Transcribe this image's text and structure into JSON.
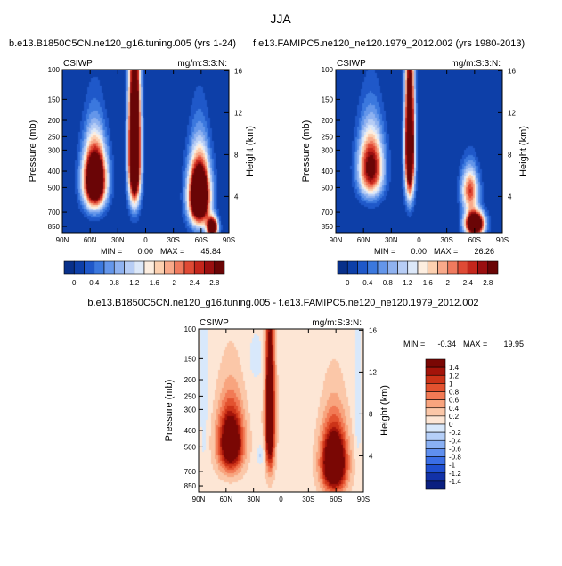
{
  "page": {
    "main_title": "JJA",
    "title_left": "b.e13.B1850C5CN.ne120_g16.tuning.005 (yrs 1-24)",
    "title_right": "f.e13.FAMIPC5.ne120_ne120.1979_2012.002 (yrs 1980-2013)",
    "title_diff": "b.e13.B1850C5CN.ne120_g16.tuning.005 - f.e13.FAMIPC5.ne120_ne120.1979_2012.002"
  },
  "colors": {
    "abs_fill": [
      "#08308a",
      "#0d3fa8",
      "#1f58c9",
      "#3b78de",
      "#6496ea",
      "#8fb2f0",
      "#b7cdf5",
      "#dce8f9",
      "#fdeee0",
      "#fcd0b0",
      "#f8a98a",
      "#ef7a5e",
      "#df4a35",
      "#c4261c",
      "#9a0f10",
      "#6a0506"
    ],
    "diff_fill": [
      "#0a1f80",
      "#1232a8",
      "#1f4fd0",
      "#3a6ee6",
      "#5f8fef",
      "#89b0f4",
      "#b5cff8",
      "#d8e8fb",
      "#fde6d5",
      "#fbc7a8",
      "#f8a47e",
      "#f27a55",
      "#e3522f",
      "#cc3318",
      "#a4140a",
      "#7a0704"
    ]
  },
  "chart_data": [
    {
      "type": "heatmap",
      "panel": "left",
      "variable": "CSIWP",
      "units": "mg/m:S:3:N:",
      "x_tick_labels": [
        "90N",
        "60N",
        "30N",
        "0",
        "30S",
        "60S",
        "90S"
      ],
      "x_values": [
        90,
        60,
        30,
        0,
        -30,
        -60,
        -90
      ],
      "y_label": "Pressure  (mb)",
      "y_ticks": [
        100,
        150,
        200,
        250,
        300,
        400,
        500,
        700,
        850
      ],
      "y_tick_labels": [
        "100",
        "150",
        "200",
        "250",
        "300",
        "400",
        "500",
        "700",
        "850"
      ],
      "y2_label": "Height  (km)",
      "y2_ticks": [
        16,
        12,
        8,
        4
      ],
      "y2_tick_labels": [
        "16",
        "12",
        "8",
        "4"
      ],
      "ylim": [
        100,
        925
      ],
      "min_label": "MIN =",
      "min_value": "0.00",
      "max_label": "MAX =",
      "max_value": "45.84",
      "levels": [
        0,
        0.2,
        0.4,
        0.6,
        0.8,
        1.0,
        1.2,
        1.4,
        1.6,
        1.8,
        2.0,
        2.2,
        2.4,
        2.6,
        2.8
      ],
      "colorbar_labels": [
        "0",
        "0.4",
        "0.8",
        "1.2",
        "1.6",
        "2",
        "2.4",
        "2.8"
      ],
      "features": [
        {
          "lat": 55,
          "p": 450,
          "sx": 12,
          "sy": 190,
          "amp": 5.0
        },
        {
          "lat": 12,
          "p": 300,
          "sx": 6,
          "sy": 280,
          "amp": 6.0
        },
        {
          "lat": -58,
          "p": 560,
          "sx": 11,
          "sy": 240,
          "amp": 5.5
        },
        {
          "lat": -72,
          "p": 860,
          "sx": 6,
          "sy": 110,
          "amp": 4.0
        }
      ]
    },
    {
      "type": "heatmap",
      "panel": "right",
      "variable": "CSIWP",
      "units": "mg/m:S:3:N:",
      "x_tick_labels": [
        "90N",
        "60N",
        "30N",
        "0",
        "30S",
        "60S",
        "90S"
      ],
      "x_values": [
        90,
        60,
        30,
        0,
        -30,
        -60,
        -90
      ],
      "y_label": "Pressure  (mb)",
      "y_ticks": [
        100,
        150,
        200,
        250,
        300,
        400,
        500,
        700,
        850
      ],
      "y_tick_labels": [
        "100",
        "150",
        "200",
        "250",
        "300",
        "400",
        "500",
        "700",
        "850"
      ],
      "y2_label": "Height  (km)",
      "y2_ticks": [
        16,
        12,
        8,
        4
      ],
      "y2_tick_labels": [
        "16",
        "12",
        "8",
        "4"
      ],
      "ylim": [
        100,
        925
      ],
      "min_label": "MIN =",
      "min_value": "0.00",
      "max_label": "MAX =",
      "max_value": "26.26",
      "levels": [
        0,
        0.2,
        0.4,
        0.6,
        0.8,
        1.0,
        1.2,
        1.4,
        1.6,
        1.8,
        2.0,
        2.2,
        2.4,
        2.6,
        2.8
      ],
      "colorbar_labels": [
        "0",
        "0.4",
        "0.8",
        "1.2",
        "1.6",
        "2",
        "2.4",
        "2.8"
      ],
      "features": [
        {
          "lat": 52,
          "p": 380,
          "sx": 13,
          "sy": 170,
          "amp": 3.2
        },
        {
          "lat": 10,
          "p": 280,
          "sx": 5,
          "sy": 260,
          "amp": 5.0
        },
        {
          "lat": -55,
          "p": 520,
          "sx": 9,
          "sy": 150,
          "amp": 2.4
        },
        {
          "lat": -60,
          "p": 820,
          "sx": 10,
          "sy": 130,
          "amp": 5.0
        }
      ]
    },
    {
      "type": "heatmap",
      "panel": "diff",
      "variable": "CSIWP",
      "units": "mg/m:S:3:N:",
      "x_tick_labels": [
        "90N",
        "60N",
        "30N",
        "0",
        "30S",
        "60S",
        "90S"
      ],
      "x_values": [
        90,
        60,
        30,
        0,
        -30,
        -60,
        -90
      ],
      "y_label": "Pressure  (mb)",
      "y_ticks": [
        100,
        150,
        200,
        250,
        300,
        400,
        500,
        700,
        850
      ],
      "y_tick_labels": [
        "100",
        "150",
        "200",
        "250",
        "300",
        "400",
        "500",
        "700",
        "850"
      ],
      "y2_label": "Height  (km)",
      "y2_ticks": [
        16,
        12,
        8,
        4
      ],
      "y2_tick_labels": [
        "16",
        "12",
        "8",
        "4"
      ],
      "ylim": [
        100,
        925
      ],
      "min_label": "MIN =",
      "min_value": "-0.34",
      "max_label": "MAX =",
      "max_value": "19.95",
      "levels": [
        -1.4,
        -1.2,
        -1.0,
        -0.8,
        -0.6,
        -0.4,
        -0.2,
        0,
        0.2,
        0.4,
        0.6,
        0.8,
        1.0,
        1.2,
        1.4
      ],
      "colorbar_labels": [
        "-1.4",
        "-1.2",
        "-1",
        "-0.8",
        "-0.6",
        "-0.4",
        "-0.2",
        "0",
        "0.2",
        "0.4",
        "0.6",
        "0.8",
        "1",
        "1.2",
        "1.4"
      ],
      "features": [
        {
          "lat": 55,
          "p": 470,
          "sx": 13,
          "sy": 200,
          "amp": 2.2
        },
        {
          "lat": 12,
          "p": 330,
          "sx": 5,
          "sy": 300,
          "amp": 2.4
        },
        {
          "lat": -58,
          "p": 620,
          "sx": 13,
          "sy": 260,
          "amp": 2.6
        },
        {
          "lat": 22,
          "p": 560,
          "sx": 4,
          "sy": 70,
          "amp": -0.35
        },
        {
          "lat": 27,
          "p": 150,
          "sx": 8,
          "sy": 45,
          "amp": -0.25
        },
        {
          "lat": 84,
          "p": 220,
          "sx": 4,
          "sy": 400,
          "amp": -0.22
        },
        {
          "lat": -84,
          "p": 300,
          "sx": 4,
          "sy": 300,
          "amp": -0.22
        }
      ],
      "base_value": 0.1
    }
  ]
}
